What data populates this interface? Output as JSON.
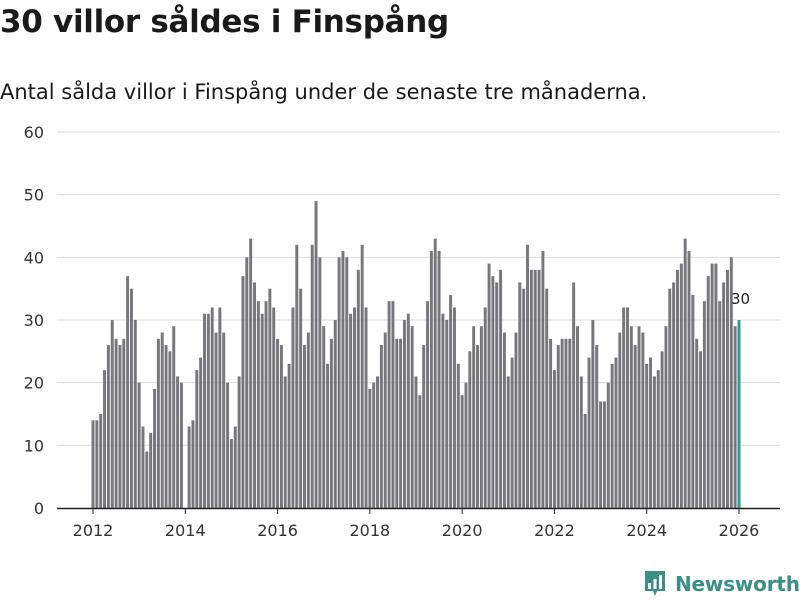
{
  "header": {
    "title": "30 villor såldes i Finspång",
    "subtitle": "Antal sålda villor i Finspång under de senaste tre månaderna."
  },
  "brand": {
    "name": "Newsworthy",
    "icon": "newsworthy-logo-icon"
  },
  "colors": {
    "bar": "#77767b",
    "highlight": "#2a9d8f",
    "grid": "#dddddd",
    "axis": "#222222",
    "brand": "#3a8f87"
  },
  "chart_data": {
    "type": "bar",
    "title": "30 villor såldes i Finspång",
    "subtitle": "Antal sålda villor i Finspång under de senaste tre månaderna.",
    "xlabel": "",
    "ylabel": "",
    "ylim": [
      0,
      60
    ],
    "yticks": [
      0,
      10,
      20,
      30,
      40,
      50,
      60
    ],
    "xlim": [
      2011.5,
      2026.5
    ],
    "xticks": [
      2012,
      2014,
      2016,
      2018,
      2020,
      2022,
      2024,
      2026
    ],
    "start": 2012.0,
    "step": 0.0833333,
    "grid": true,
    "highlight_label": "30",
    "values": [
      14,
      14,
      15,
      22,
      26,
      30,
      27,
      26,
      27,
      37,
      35,
      30,
      20,
      13,
      9,
      12,
      19,
      27,
      28,
      26,
      25,
      29,
      21,
      20,
      0,
      13,
      14,
      22,
      24,
      31,
      31,
      32,
      28,
      32,
      28,
      20,
      11,
      13,
      21,
      37,
      40,
      43,
      36,
      33,
      31,
      33,
      35,
      32,
      27,
      26,
      21,
      23,
      32,
      42,
      35,
      26,
      28,
      42,
      49,
      40,
      29,
      23,
      27,
      30,
      40,
      41,
      40,
      31,
      32,
      38,
      42,
      32,
      19,
      20,
      21,
      26,
      28,
      33,
      33,
      27,
      27,
      30,
      31,
      29,
      21,
      18,
      26,
      33,
      41,
      43,
      41,
      31,
      30,
      34,
      32,
      23,
      18,
      20,
      25,
      29,
      26,
      29,
      32,
      39,
      37,
      36,
      38,
      28,
      21,
      24,
      28,
      36,
      35,
      42,
      38,
      38,
      38,
      41,
      35,
      27,
      22,
      26,
      27,
      27,
      27,
      36,
      29,
      21,
      15,
      24,
      30,
      26,
      17,
      17,
      20,
      23,
      24,
      28,
      32,
      32,
      29,
      26,
      29,
      28,
      23,
      24,
      21,
      22,
      25,
      29,
      35,
      36,
      38,
      39,
      43,
      41,
      34,
      27,
      25,
      33,
      37,
      39,
      39,
      33,
      36,
      38,
      40,
      29,
      30
    ]
  }
}
